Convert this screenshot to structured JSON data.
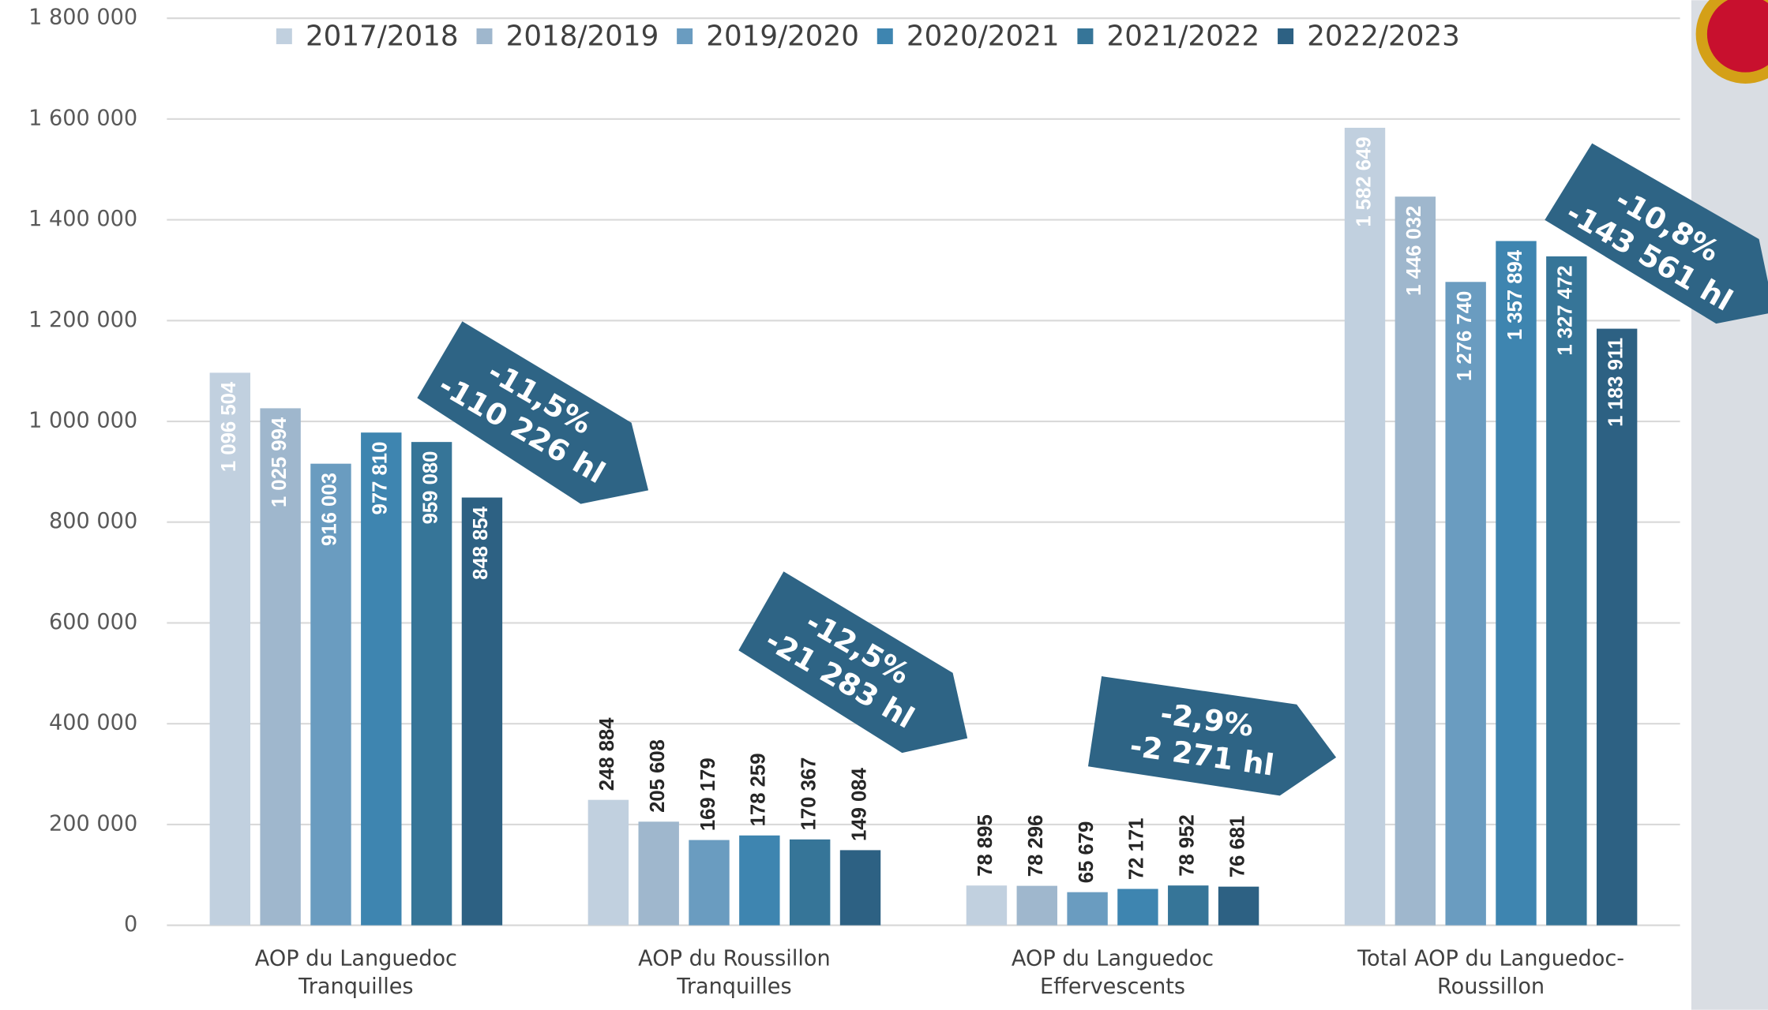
{
  "chart_data": {
    "type": "bar",
    "categories": [
      "AOP du Languedoc\nTranquilles",
      "AOP du Roussillon\nTranquilles",
      "AOP du Languedoc\nEffervescents",
      "Total AOP du Languedoc-\nRoussillon"
    ],
    "series": [
      {
        "name": "2017/2018",
        "color": "#c1d0df",
        "values": [
          1096504,
          248884,
          78895,
          1582649
        ],
        "value_labels": [
          "1 096 504",
          "248 884",
          "78 895",
          "1 582 649"
        ]
      },
      {
        "name": "2018/2019",
        "color": "#9fb7cd",
        "values": [
          1025994,
          205608,
          78296,
          1446032
        ],
        "value_labels": [
          "1 025 994",
          "205 608",
          "78 296",
          "1 446 032"
        ]
      },
      {
        "name": "2019/2020",
        "color": "#6a9cc0",
        "values": [
          916003,
          169179,
          65679,
          1276740
        ],
        "value_labels": [
          "916 003",
          "169 179",
          "65 679",
          "1 276 740"
        ]
      },
      {
        "name": "2020/2021",
        "color": "#3e85b0",
        "values": [
          977810,
          178259,
          72171,
          1357894
        ],
        "value_labels": [
          "977 810",
          "178 259",
          "72 171",
          "1 357 894"
        ]
      },
      {
        "name": "2021/2022",
        "color": "#367598",
        "values": [
          959080,
          170367,
          78952,
          1327472
        ],
        "value_labels": [
          "959 080",
          "170 367",
          "78 952",
          "1 327 472"
        ]
      },
      {
        "name": "2022/2023",
        "color": "#2d6183",
        "values": [
          848854,
          149084,
          76681,
          1183911
        ],
        "value_labels": [
          "848 854",
          "149 084",
          "76 681",
          "1 183 911"
        ]
      }
    ],
    "ylim": [
      0,
      1800000
    ],
    "yticks": [
      0,
      {
        "value": 200000,
        "label": "200 000"
      },
      {
        "value": 400000,
        "label": "400 000"
      },
      {
        "value": 600000,
        "label": "600 000"
      },
      {
        "value": 800000,
        "label": "800 000"
      },
      {
        "value": 1000000,
        "label": "1 000 000"
      },
      {
        "value": 1200000,
        "label": "1 200 000"
      },
      {
        "value": 1400000,
        "label": "1 400 000"
      },
      {
        "value": 1600000,
        "label": "1 600 000"
      },
      {
        "value": 1800000,
        "label": "1 800 000"
      }
    ],
    "grid": true,
    "annotations": [
      [
        "-11,5%",
        "-110 226 hl"
      ],
      [
        "-12,5%",
        "-21 283 hl"
      ],
      [
        "-2,9%",
        "-2 271 hl"
      ],
      [
        "-10,8%",
        "-143 561 hl"
      ]
    ]
  }
}
